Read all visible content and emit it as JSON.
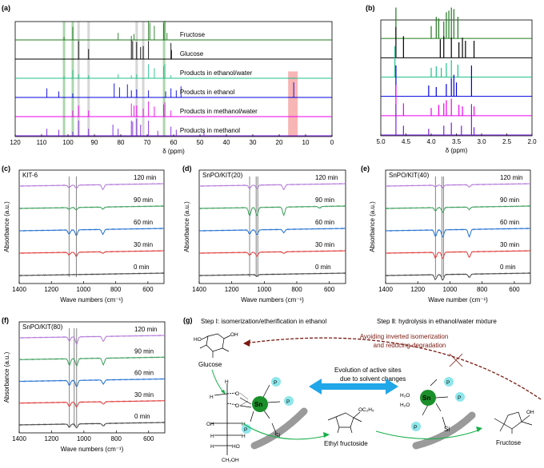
{
  "figure": {
    "panel_labels": [
      "(a)",
      "(b)",
      "(c)",
      "(d)",
      "(e)",
      "(f)",
      "(g)"
    ]
  },
  "chart_data": [
    {
      "id": "a",
      "type": "line",
      "title": "",
      "xlabel": "δ (ppm)",
      "ylabel": "",
      "xlim": [
        120,
        0
      ],
      "xticks": [
        120,
        110,
        100,
        90,
        80,
        70,
        60,
        50,
        40,
        30,
        20,
        10,
        0
      ],
      "series": [
        {
          "name": "Fructose",
          "color": "#1f7a1f",
          "peaks": [
            [
              101.5,
              0.15
            ],
            [
              98.2,
              0.65
            ],
            [
              81.0,
              0.35
            ],
            [
              76.0,
              0.2
            ],
            [
              75.0,
              0.3
            ],
            [
              69.5,
              0.95
            ],
            [
              69.0,
              0.85
            ],
            [
              67.3,
              0.7
            ],
            [
              63.8,
              0.85
            ],
            [
              63.3,
              0.95
            ],
            [
              62.5,
              0.35
            ]
          ]
        },
        {
          "name": "Glucose",
          "color": "#000000",
          "peaks": [
            [
              96.0,
              0.9
            ],
            [
              92.2,
              0.5
            ],
            [
              76.0,
              0.95
            ],
            [
              75.5,
              0.9
            ],
            [
              74.0,
              0.85
            ],
            [
              72.5,
              0.6
            ],
            [
              71.5,
              0.65
            ],
            [
              69.5,
              0.9
            ],
            [
              61.0,
              0.8
            ],
            [
              60.8,
              0.45
            ]
          ]
        },
        {
          "name": "Products in ethanol/water",
          "color": "#20c08a",
          "peaks": [
            [
              101.5,
              0.1
            ],
            [
              98.2,
              0.4
            ],
            [
              96.0,
              0.2
            ],
            [
              92.2,
              0.15
            ],
            [
              81.0,
              0.2
            ],
            [
              76.0,
              0.15
            ],
            [
              74.0,
              0.2
            ],
            [
              69.5,
              0.7
            ],
            [
              67.3,
              0.5
            ],
            [
              63.8,
              0.6
            ],
            [
              63.3,
              0.7
            ],
            [
              61.0,
              0.15
            ],
            [
              14.5,
              0.05
            ]
          ]
        },
        {
          "name": "Products in ethanol",
          "color": "#0000dd",
          "peaks": [
            [
              108.0,
              0.45
            ],
            [
              103.5,
              0.3
            ],
            [
              98.2,
              0.2
            ],
            [
              82.5,
              0.7
            ],
            [
              80.5,
              0.5
            ],
            [
              77.5,
              0.65
            ],
            [
              76.0,
              0.35
            ],
            [
              74.0,
              0.4
            ],
            [
              69.5,
              0.35
            ],
            [
              63.0,
              0.3
            ],
            [
              61.0,
              0.45
            ],
            [
              59.0,
              0.35
            ],
            [
              57.2,
              0.55
            ],
            [
              14.5,
              0.75
            ]
          ]
        },
        {
          "name": "Products in methanol/water",
          "color": "#ee00ee",
          "peaks": [
            [
              98.2,
              0.3
            ],
            [
              96.0,
              0.55
            ],
            [
              92.2,
              0.3
            ],
            [
              76.0,
              0.65
            ],
            [
              75.0,
              0.55
            ],
            [
              74.0,
              0.55
            ],
            [
              71.5,
              0.4
            ],
            [
              69.5,
              0.75
            ],
            [
              67.3,
              0.5
            ],
            [
              63.8,
              0.6
            ],
            [
              63.3,
              0.7
            ],
            [
              61.0,
              0.3
            ]
          ]
        },
        {
          "name": "Products in methanol",
          "color": "#7a22dd",
          "peaks": [
            [
              108.0,
              0.35
            ],
            [
              103.5,
              0.3
            ],
            [
              98.2,
              0.2
            ],
            [
              96.0,
              0.75
            ],
            [
              92.2,
              0.35
            ],
            [
              83.0,
              0.55
            ],
            [
              81.0,
              0.35
            ],
            [
              76.0,
              0.75
            ],
            [
              75.5,
              0.7
            ],
            [
              74.0,
              0.85
            ],
            [
              72.5,
              0.55
            ],
            [
              69.5,
              0.75
            ],
            [
              66.0,
              0.25
            ],
            [
              61.0,
              0.45
            ],
            [
              59.0,
              0.3
            ],
            [
              48.5,
              0.2
            ]
          ]
        }
      ],
      "highlights": [
        {
          "ppm": 101.5,
          "color": "#9dcf9d"
        },
        {
          "ppm": 98.2,
          "color": "#9dcf9d"
        },
        {
          "ppm": 96.0,
          "color": "#cfcfcf"
        },
        {
          "ppm": 92.2,
          "color": "#cfcfcf"
        },
        {
          "ppm": 74.0,
          "color": "#cfcfcf"
        },
        {
          "ppm": 71.5,
          "color": "#cfcfcf"
        },
        {
          "ppm": 63.6,
          "color": "#9dcf9d"
        },
        {
          "ppm": 14.8,
          "color": "#f7a8a8",
          "wide": true
        }
      ]
    },
    {
      "id": "b",
      "type": "line",
      "xlabel": "δ (ppm)",
      "xlim": [
        5.0,
        2.0
      ],
      "xticks": [
        "5.0",
        "4.5",
        "4.0",
        "3.5",
        "3.0",
        "2.5",
        "2.0"
      ],
      "series": [
        {
          "name": "Fructose",
          "color": "#1f7a1f",
          "peaks": [
            [
              4.7,
              1.0
            ],
            [
              4.0,
              0.4
            ],
            [
              3.9,
              0.7
            ],
            [
              3.85,
              0.65
            ],
            [
              3.75,
              0.55
            ],
            [
              3.7,
              0.85
            ],
            [
              3.65,
              0.9
            ],
            [
              3.6,
              1.0
            ],
            [
              3.55,
              0.95
            ],
            [
              3.47,
              0.7
            ]
          ]
        },
        {
          "name": "Glucose",
          "color": "#000000",
          "peaks": [
            [
              4.7,
              1.0
            ],
            [
              4.55,
              0.7
            ],
            [
              3.82,
              0.6
            ],
            [
              3.75,
              0.7
            ],
            [
              3.6,
              0.65
            ],
            [
              3.45,
              0.5
            ],
            [
              3.38,
              0.65
            ],
            [
              3.32,
              0.55
            ],
            [
              3.15,
              0.55
            ]
          ]
        },
        {
          "name": "Products in ethanol/water",
          "color": "#20c08a",
          "peaks": [
            [
              4.72,
              1.0
            ],
            [
              4.0,
              0.3
            ],
            [
              3.9,
              0.35
            ],
            [
              3.8,
              0.3
            ],
            [
              3.7,
              0.45
            ],
            [
              3.6,
              0.55
            ],
            [
              3.47,
              0.4
            ]
          ]
        },
        {
          "name": "Products in ethanol",
          "color": "#0000dd",
          "peaks": [
            [
              4.7,
              1.0
            ],
            [
              4.05,
              0.35
            ],
            [
              3.9,
              0.3
            ],
            [
              3.7,
              0.4
            ],
            [
              3.6,
              0.6
            ],
            [
              3.55,
              0.7
            ],
            [
              3.5,
              0.45
            ],
            [
              3.2,
              1.0
            ]
          ]
        },
        {
          "name": "Products in methanol/water",
          "color": "#ee00ee",
          "peaks": [
            [
              4.7,
              1.0
            ],
            [
              4.55,
              0.4
            ],
            [
              4.0,
              0.25
            ],
            [
              3.85,
              0.35
            ],
            [
              3.75,
              0.4
            ],
            [
              3.7,
              0.5
            ],
            [
              3.6,
              0.55
            ],
            [
              3.45,
              0.35
            ],
            [
              3.38,
              0.3
            ],
            [
              3.15,
              0.3
            ]
          ]
        },
        {
          "name": "Products in methanol",
          "color": "#7a22dd",
          "peaks": [
            [
              4.7,
              1.0
            ],
            [
              4.55,
              0.3
            ],
            [
              4.05,
              0.2
            ],
            [
              3.75,
              0.3
            ],
            [
              3.6,
              0.4
            ],
            [
              3.4,
              0.3
            ],
            [
              3.2,
              1.0
            ],
            [
              3.15,
              0.25
            ]
          ]
        }
      ]
    },
    {
      "id": "c",
      "type": "line",
      "sample": "KIT-6",
      "xlabel": "Wave numbers (cm⁻¹)",
      "ylabel": "Absorbance (a.u.)",
      "xlim": [
        1400,
        500
      ],
      "xticks": [
        1400,
        1200,
        1000,
        800,
        600
      ],
      "ref_lines": [
        1090,
        1045
      ],
      "series": [
        {
          "name": "120 min",
          "color": "#b278d8",
          "dips": [
            [
              1090,
              0.3
            ],
            [
              1045,
              0.4
            ],
            [
              880,
              0.6
            ]
          ]
        },
        {
          "name": "90 min",
          "color": "#3a9e5a",
          "dips": [
            [
              1090,
              0.2
            ],
            [
              1045,
              0.3
            ],
            [
              880,
              0.25
            ]
          ]
        },
        {
          "name": "60 min",
          "color": "#1f6fd0",
          "dips": [
            [
              1090,
              0.5
            ],
            [
              1045,
              0.7
            ],
            [
              880,
              0.6
            ]
          ]
        },
        {
          "name": "30 min",
          "color": "#e03a3a",
          "dips": [
            [
              1090,
              0.3
            ],
            [
              1045,
              0.5
            ],
            [
              880,
              0.2
            ]
          ]
        },
        {
          "name": "0 min",
          "color": "#444444",
          "dips": []
        }
      ]
    },
    {
      "id": "d",
      "type": "line",
      "sample": "SnPO/KIT(20)",
      "xlabel": "Wave numbers (cm⁻¹)",
      "ylabel": "Absorbance (a.u.)",
      "xlim": [
        1400,
        500
      ],
      "xticks": [
        1400,
        1200,
        1000,
        800,
        600
      ],
      "ref_lines": [
        1090,
        1050,
        1040
      ],
      "series": [
        {
          "name": "120 min",
          "color": "#b278d8",
          "dips": [
            [
              1090,
              0.4
            ],
            [
              1045,
              0.4
            ],
            [
              880,
              0.6
            ]
          ]
        },
        {
          "name": "90 min",
          "color": "#3a9e5a",
          "dips": [
            [
              1090,
              1.0
            ],
            [
              1045,
              1.0
            ],
            [
              880,
              1.0
            ],
            [
              660,
              0.2
            ]
          ]
        },
        {
          "name": "60 min",
          "color": "#1f6fd0",
          "dips": [
            [
              1090,
              0.5
            ],
            [
              1045,
              0.6
            ],
            [
              880,
              0.4
            ]
          ]
        },
        {
          "name": "30 min",
          "color": "#e03a3a",
          "dips": [
            [
              1090,
              0.35
            ],
            [
              1045,
              0.5
            ],
            [
              880,
              0.2
            ]
          ]
        },
        {
          "name": "0 min",
          "color": "#444444",
          "dips": [
            [
              1045,
              0.2
            ]
          ]
        }
      ]
    },
    {
      "id": "e",
      "type": "line",
      "sample": "SnPO/KIT(40)",
      "xlabel": "Wave number (cm⁻¹)",
      "ylabel": "Absorbance (a.u.)",
      "xlim": [
        1400,
        500
      ],
      "xticks": [
        1400,
        1200,
        1000,
        800,
        600
      ],
      "ref_lines": [
        1090,
        1050,
        1040
      ],
      "series": [
        {
          "name": "120 min",
          "color": "#b278d8",
          "dips": [
            [
              1090,
              0.2
            ],
            [
              1045,
              0.3
            ],
            [
              880,
              0.3
            ]
          ]
        },
        {
          "name": "90 min",
          "color": "#3a9e5a",
          "dips": [
            [
              1090,
              0.4
            ],
            [
              1045,
              0.6
            ],
            [
              880,
              0.3
            ]
          ]
        },
        {
          "name": "60 min",
          "color": "#1f6fd0",
          "dips": [
            [
              1090,
              0.8
            ],
            [
              1045,
              0.9
            ],
            [
              880,
              0.9
            ]
          ]
        },
        {
          "name": "30 min",
          "color": "#e03a3a",
          "dips": [
            [
              1090,
              0.7
            ],
            [
              1045,
              0.8
            ],
            [
              880,
              0.7
            ]
          ]
        },
        {
          "name": "0 min",
          "color": "#444444",
          "dips": [
            [
              1090,
              0.6
            ],
            [
              1045,
              0.7
            ],
            [
              880,
              0.4
            ]
          ]
        }
      ]
    },
    {
      "id": "f",
      "type": "line",
      "sample": "SnPO/KIT(80)",
      "xlabel": "Wave numbers (cm⁻¹)",
      "ylabel": "Absorbance (a.u.)",
      "xlim": [
        1400,
        500
      ],
      "xticks": [
        1400,
        1200,
        1000,
        800,
        600
      ],
      "ref_lines": [
        1090,
        1060,
        1045
      ],
      "series": [
        {
          "name": "120 min",
          "color": "#b278d8",
          "dips": [
            [
              1090,
              0.5
            ],
            [
              1045,
              0.9
            ],
            [
              880,
              0.6
            ]
          ]
        },
        {
          "name": "90 min",
          "color": "#3a9e5a",
          "dips": [
            [
              1090,
              0.8
            ],
            [
              1045,
              0.9
            ],
            [
              880,
              0.8
            ]
          ]
        },
        {
          "name": "60 min",
          "color": "#1f6fd0",
          "dips": [
            [
              1090,
              0.6
            ],
            [
              1045,
              0.8
            ],
            [
              880,
              0.5
            ]
          ]
        },
        {
          "name": "30 min",
          "color": "#e03a3a",
          "dips": [
            [
              1090,
              0.5
            ],
            [
              1045,
              0.6
            ],
            [
              880,
              0.3
            ]
          ]
        },
        {
          "name": "0 min",
          "color": "#444444",
          "dips": [
            [
              1090,
              0.4
            ],
            [
              1045,
              0.5
            ],
            [
              880,
              0.3
            ]
          ]
        }
      ]
    }
  ],
  "scheme": {
    "step1": "Step Ⅰ: isomerization/etherification in ethanol",
    "step2": "Step Ⅱ: hydrolysis in ethanol/water mixture",
    "glucose": "Glucose",
    "ethyl_fructoside": "Ethyl fructoside",
    "fructose": "Fructose",
    "evolution_line1": "Evolution of active sites",
    "evolution_line2": "due to solvent changes",
    "avoid_line1": "Avoiding inverted isomerization",
    "avoid_line2": "and reducing degradation",
    "sn": "Sn",
    "p": "P",
    "si": "Si",
    "o": "O",
    "h": "H",
    "oh": "OH",
    "ho": "HO",
    "ch2oh": "CH₂OH",
    "h2o": "H₂O",
    "oc2h5": "OC₂H₅",
    "colors": {
      "arrow_green": "#18b04a",
      "arrow_blue": "#21a6e8",
      "dashed_brown": "#7a1a10",
      "sn_green": "#1a8f2a",
      "p_cyan": "#8ee6ea"
    }
  }
}
